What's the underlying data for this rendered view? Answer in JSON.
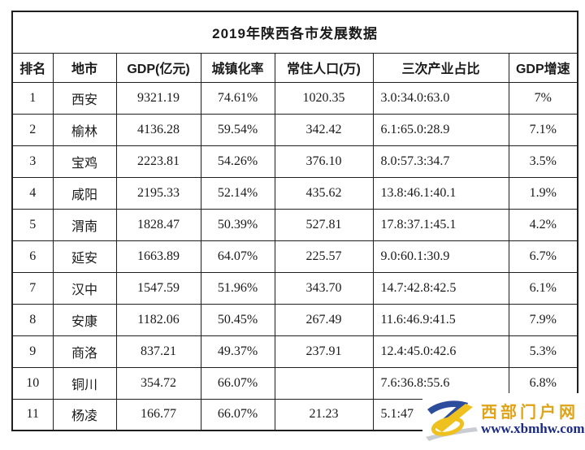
{
  "chart_data": {
    "type": "table",
    "title": "2019年陕西各市发展数据",
    "columns": [
      "排名",
      "地市",
      "GDP(亿元)",
      "城镇化率",
      "常住人口(万)",
      "三次产业占比",
      "GDP增速"
    ],
    "rows": [
      [
        "1",
        "西安",
        "9321.19",
        "74.61%",
        "1020.35",
        "3.0:34.0:63.0",
        "7%"
      ],
      [
        "2",
        "榆林",
        "4136.28",
        "59.54%",
        "342.42",
        "6.1:65.0:28.9",
        "7.1%"
      ],
      [
        "3",
        "宝鸡",
        "2223.81",
        "54.26%",
        "376.10",
        "8.0:57.3:34.7",
        "3.5%"
      ],
      [
        "4",
        "咸阳",
        "2195.33",
        "52.14%",
        "435.62",
        "13.8:46.1:40.1",
        "1.9%"
      ],
      [
        "5",
        "渭南",
        "1828.47",
        "50.39%",
        "527.81",
        "17.8:37.1:45.1",
        "4.2%"
      ],
      [
        "6",
        "延安",
        "1663.89",
        "64.07%",
        "225.57",
        "9.0:60.1:30.9",
        "6.7%"
      ],
      [
        "7",
        "汉中",
        "1547.59",
        "51.96%",
        "343.70",
        "14.7:42.8:42.5",
        "6.1%"
      ],
      [
        "8",
        "安康",
        "1182.06",
        "50.45%",
        "267.49",
        "11.6:46.9:41.5",
        "7.9%"
      ],
      [
        "9",
        "商洛",
        "837.21",
        "49.37%",
        "237.91",
        "12.4:45.0:42.6",
        "5.3%"
      ],
      [
        "10",
        "铜川",
        "354.72",
        "66.07%",
        "",
        "7.6:36.8:55.6",
        "6.8%"
      ],
      [
        "11",
        "杨凌",
        "166.77",
        "66.07%",
        "21.23",
        "5.1:47",
        ""
      ]
    ]
  },
  "watermark": {
    "site_name": "西部门户网",
    "site_url": "www.xbmhw.com"
  },
  "colors": {
    "border": "#1f1f1f",
    "text": "#1a1a1a",
    "watermark_gold": "#DFA315",
    "watermark_navy": "#1B2B83",
    "logo_blue": "#2C4C9C",
    "logo_yellow": "#EFC11E",
    "logo_gray": "#C9CCD3"
  }
}
